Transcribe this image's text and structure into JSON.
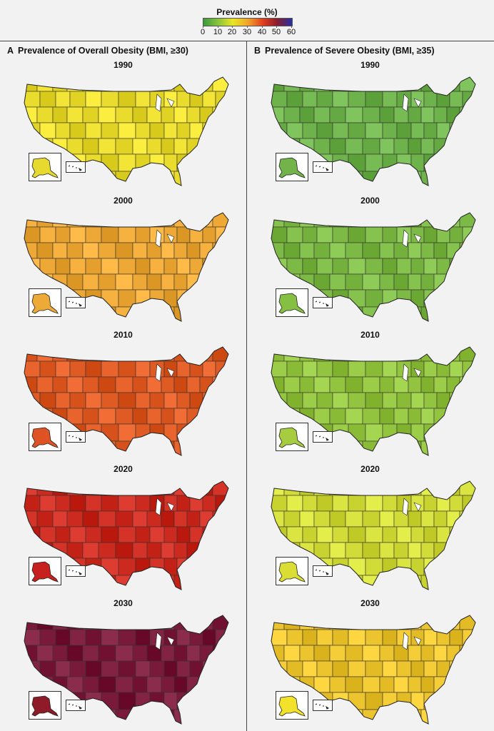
{
  "legend": {
    "title": "Prevalence (%)",
    "ticks": [
      "0",
      "10",
      "20",
      "30",
      "40",
      "50",
      "60"
    ],
    "colors": [
      "#3a9a3e",
      "#8cc43c",
      "#e8e626",
      "#f0a52a",
      "#e2401f",
      "#8c1c2a",
      "#2430a8"
    ]
  },
  "panels": [
    {
      "letter": "A",
      "title": "Prevalence of Overall Obesity (BMI, ≥30)",
      "maps": [
        {
          "year": "1990",
          "fill": "#eadc2d",
          "alaska": "#e7d92e"
        },
        {
          "year": "2000",
          "fill": "#eea836",
          "alaska": "#eeaa36"
        },
        {
          "year": "2010",
          "fill": "#e05a24",
          "alaska": "#de5224"
        },
        {
          "year": "2020",
          "fill": "#cc2a1e",
          "alaska": "#c81f1f"
        },
        {
          "year": "2030",
          "fill": "#7a1a3a",
          "alaska": "#8f1b28"
        }
      ]
    },
    {
      "letter": "B",
      "title": "Prevalence of Severe Obesity (BMI, ≥35)",
      "maps": [
        {
          "year": "1990",
          "fill": "#6db24a",
          "alaska": "#72b44a"
        },
        {
          "year": "2000",
          "fill": "#7cba45",
          "alaska": "#86c043"
        },
        {
          "year": "2010",
          "fill": "#92c43f",
          "alaska": "#a6cd3f"
        },
        {
          "year": "2020",
          "fill": "#d2dc38",
          "alaska": "#d9dd34"
        },
        {
          "year": "2030",
          "fill": "#ecc42e",
          "alaska": "#f2e22c"
        }
      ]
    }
  ]
}
